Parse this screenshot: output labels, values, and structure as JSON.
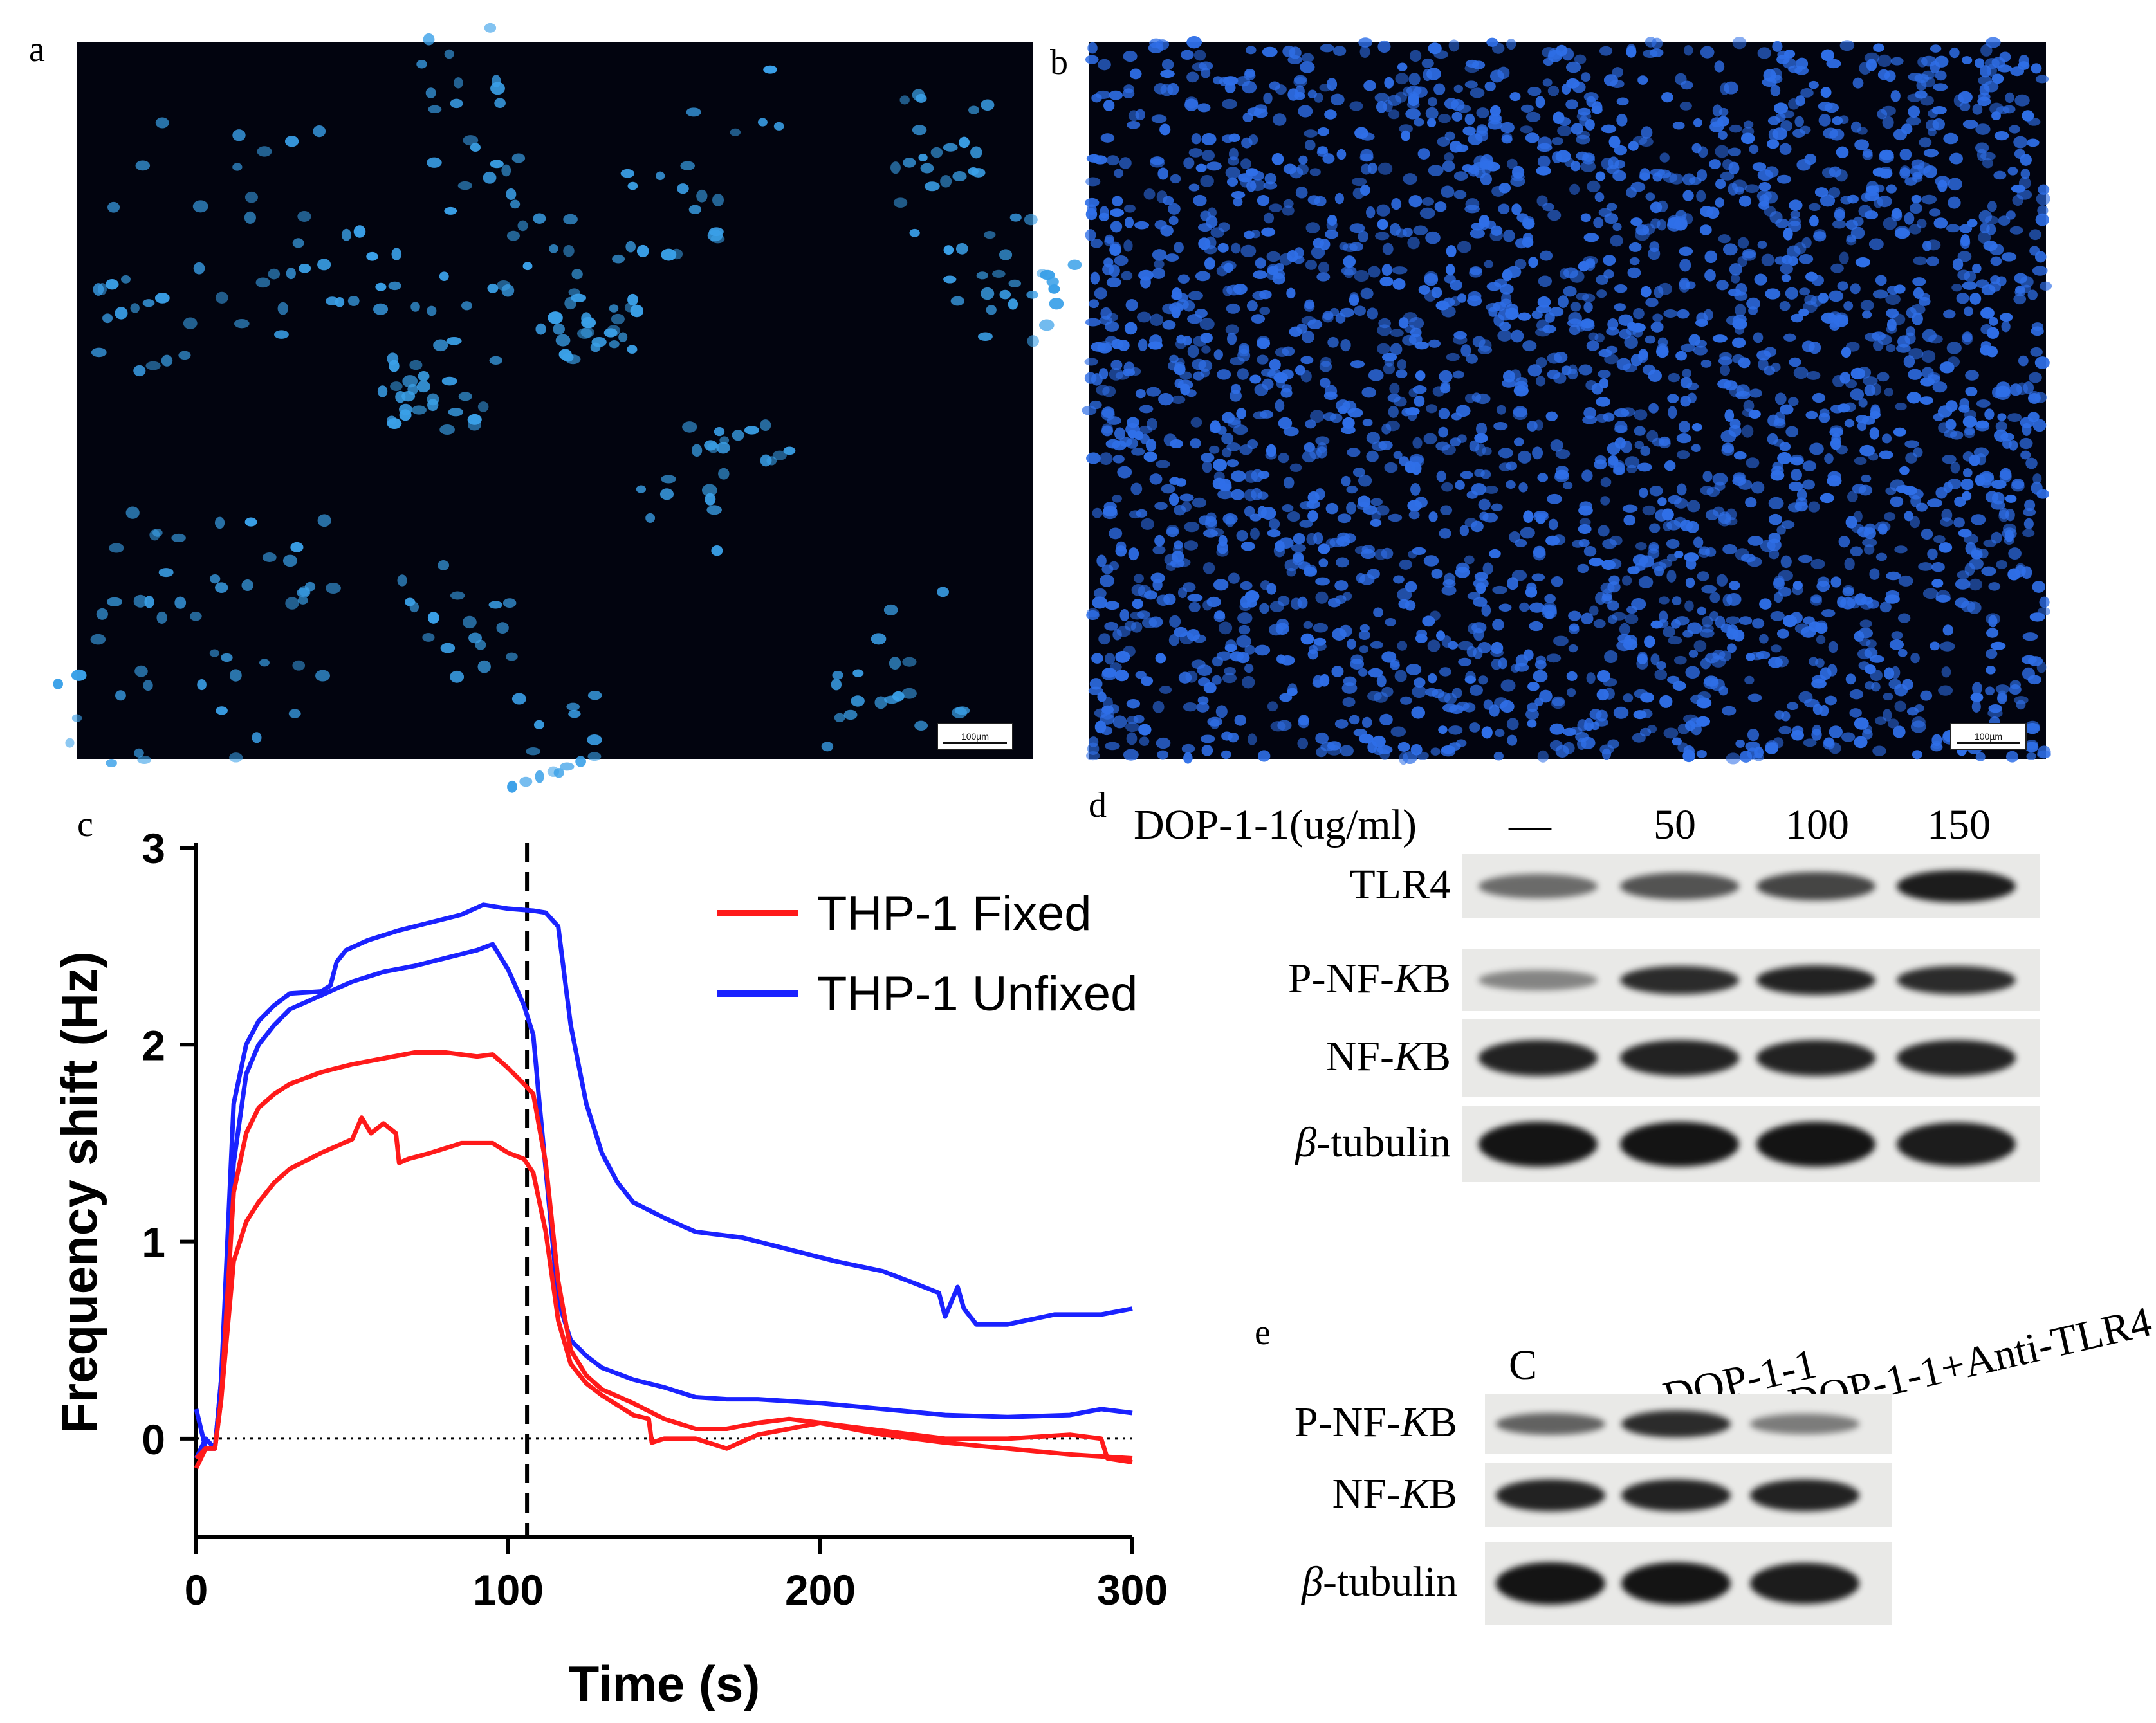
{
  "panels": {
    "a": {
      "letter": "a",
      "scalebar": "100µm",
      "cell_density": "sparse",
      "cell_color": "#3aa0e8"
    },
    "b": {
      "letter": "b",
      "scalebar": "100µm",
      "cell_density": "dense",
      "cell_color": "#2f6fe8"
    },
    "c": {
      "letter": "c"
    },
    "d": {
      "letter": "d",
      "treatment_label": "DOP-1-1(ug/ml)",
      "lanes": [
        "—",
        "50",
        "100",
        "150"
      ],
      "rows": [
        {
          "name": "TLR4",
          "italic": false,
          "intensity": [
            0.45,
            0.6,
            0.7,
            0.95
          ]
        },
        {
          "prefix": "P-NF-",
          "ital": "K",
          "suffix": "B",
          "intensity": [
            0.3,
            0.85,
            0.9,
            0.85
          ]
        },
        {
          "prefix": "NF-",
          "ital": "K",
          "suffix": "B",
          "intensity": [
            0.9,
            0.9,
            0.9,
            0.9
          ]
        },
        {
          "prefix": "",
          "ital": "β",
          "suffix": "-tubulin",
          "intensity": [
            1.0,
            1.0,
            1.0,
            0.95
          ]
        }
      ]
    },
    "e": {
      "letter": "e",
      "lanes": [
        "C",
        "DOP-1-1",
        "DOP-1-1+Anti-TLR4"
      ],
      "rows": [
        {
          "prefix": "P-NF-",
          "ital": "K",
          "suffix": "B",
          "intensity": [
            0.5,
            0.85,
            0.35
          ]
        },
        {
          "prefix": "NF-",
          "ital": "K",
          "suffix": "B",
          "intensity": [
            0.9,
            0.9,
            0.9
          ]
        },
        {
          "prefix": "",
          "ital": "β",
          "suffix": "-tubulin",
          "intensity": [
            1.0,
            1.0,
            0.95
          ]
        }
      ]
    }
  },
  "chart_data": {
    "type": "line",
    "xlabel": "Time (s)",
    "ylabel": "Frequency shift (Hz)",
    "xlim": [
      0,
      300
    ],
    "ylim": [
      -0.5,
      3
    ],
    "xticks": [
      0,
      100,
      200,
      300
    ],
    "yticks": [
      0,
      1,
      2,
      3
    ],
    "vline_x": 106,
    "hline_y": 0,
    "legend": [
      {
        "name": "THP-1 Fixed",
        "color": "#ff1a1a"
      },
      {
        "name": "THP-1 Unfixed",
        "color": "#1a22ff"
      }
    ],
    "series": [
      {
        "name": "THP-1 Unfixed",
        "color": "#1a22ff",
        "x": [
          0,
          3,
          6,
          8,
          12,
          16,
          20,
          25,
          30,
          40,
          43,
          45,
          48,
          55,
          65,
          75,
          85,
          92,
          100,
          108,
          112,
          116,
          120,
          125,
          130,
          135,
          140,
          150,
          160,
          175,
          190,
          205,
          220,
          230,
          238,
          240,
          244,
          246,
          250,
          260,
          275,
          290,
          300
        ],
        "y": [
          -0.1,
          0.0,
          -0.05,
          0.3,
          1.7,
          2.0,
          2.12,
          2.2,
          2.26,
          2.27,
          2.3,
          2.42,
          2.48,
          2.53,
          2.58,
          2.62,
          2.66,
          2.71,
          2.69,
          2.68,
          2.67,
          2.6,
          2.1,
          1.7,
          1.45,
          1.3,
          1.2,
          1.12,
          1.05,
          1.02,
          0.96,
          0.9,
          0.85,
          0.79,
          0.74,
          0.62,
          0.77,
          0.66,
          0.58,
          0.58,
          0.63,
          0.63,
          0.66
        ]
      },
      {
        "name": "THP-1 Unfixed",
        "color": "#1a22ff",
        "x": [
          0,
          3,
          6,
          8,
          12,
          16,
          20,
          25,
          30,
          40,
          50,
          60,
          70,
          80,
          90,
          95,
          100,
          105,
          108,
          110,
          113,
          116,
          120,
          125,
          130,
          140,
          150,
          160,
          170,
          180,
          200,
          220,
          240,
          260,
          280,
          290,
          300
        ],
        "y": [
          0.15,
          -0.05,
          -0.05,
          0.3,
          1.4,
          1.85,
          2.0,
          2.1,
          2.18,
          2.25,
          2.32,
          2.37,
          2.4,
          2.44,
          2.48,
          2.51,
          2.38,
          2.2,
          2.05,
          1.7,
          1.2,
          0.7,
          0.5,
          0.42,
          0.36,
          0.3,
          0.26,
          0.21,
          0.2,
          0.2,
          0.18,
          0.15,
          0.12,
          0.11,
          0.12,
          0.15,
          0.13
        ]
      },
      {
        "name": "THP-1 Fixed",
        "color": "#ff1a1a",
        "x": [
          0,
          3,
          6,
          8,
          12,
          16,
          20,
          25,
          30,
          40,
          50,
          60,
          70,
          80,
          90,
          95,
          100,
          105,
          108,
          112,
          116,
          120,
          125,
          130,
          140,
          150,
          160,
          170,
          180,
          190,
          200,
          210,
          220,
          240,
          260,
          280,
          300
        ],
        "y": [
          -0.15,
          -0.05,
          -0.05,
          0.2,
          1.25,
          1.55,
          1.68,
          1.75,
          1.8,
          1.86,
          1.9,
          1.93,
          1.96,
          1.96,
          1.94,
          1.95,
          1.88,
          1.8,
          1.75,
          1.4,
          0.8,
          0.45,
          0.32,
          0.25,
          0.18,
          0.1,
          0.05,
          0.05,
          0.08,
          0.1,
          0.08,
          0.05,
          0.02,
          -0.02,
          -0.05,
          -0.08,
          -0.1
        ]
      },
      {
        "name": "THP-1 Fixed",
        "color": "#ff1a1a",
        "x": [
          0,
          3,
          6,
          8,
          12,
          16,
          20,
          25,
          30,
          40,
          50,
          53,
          56,
          60,
          64,
          65,
          68,
          75,
          85,
          95,
          100,
          105,
          108,
          112,
          116,
          120,
          125,
          130,
          140,
          145,
          146,
          150,
          160,
          170,
          180,
          190,
          200,
          220,
          240,
          260,
          280,
          290,
          292,
          300
        ],
        "y": [
          -0.1,
          -0.05,
          -0.05,
          0.2,
          0.9,
          1.1,
          1.2,
          1.3,
          1.37,
          1.45,
          1.52,
          1.63,
          1.55,
          1.6,
          1.55,
          1.4,
          1.42,
          1.45,
          1.5,
          1.5,
          1.45,
          1.42,
          1.35,
          1.05,
          0.6,
          0.38,
          0.28,
          0.22,
          0.12,
          0.1,
          -0.02,
          0.0,
          0.0,
          -0.05,
          0.02,
          0.05,
          0.08,
          0.04,
          0.0,
          0.0,
          0.02,
          0.0,
          -0.1,
          -0.12
        ]
      }
    ]
  }
}
